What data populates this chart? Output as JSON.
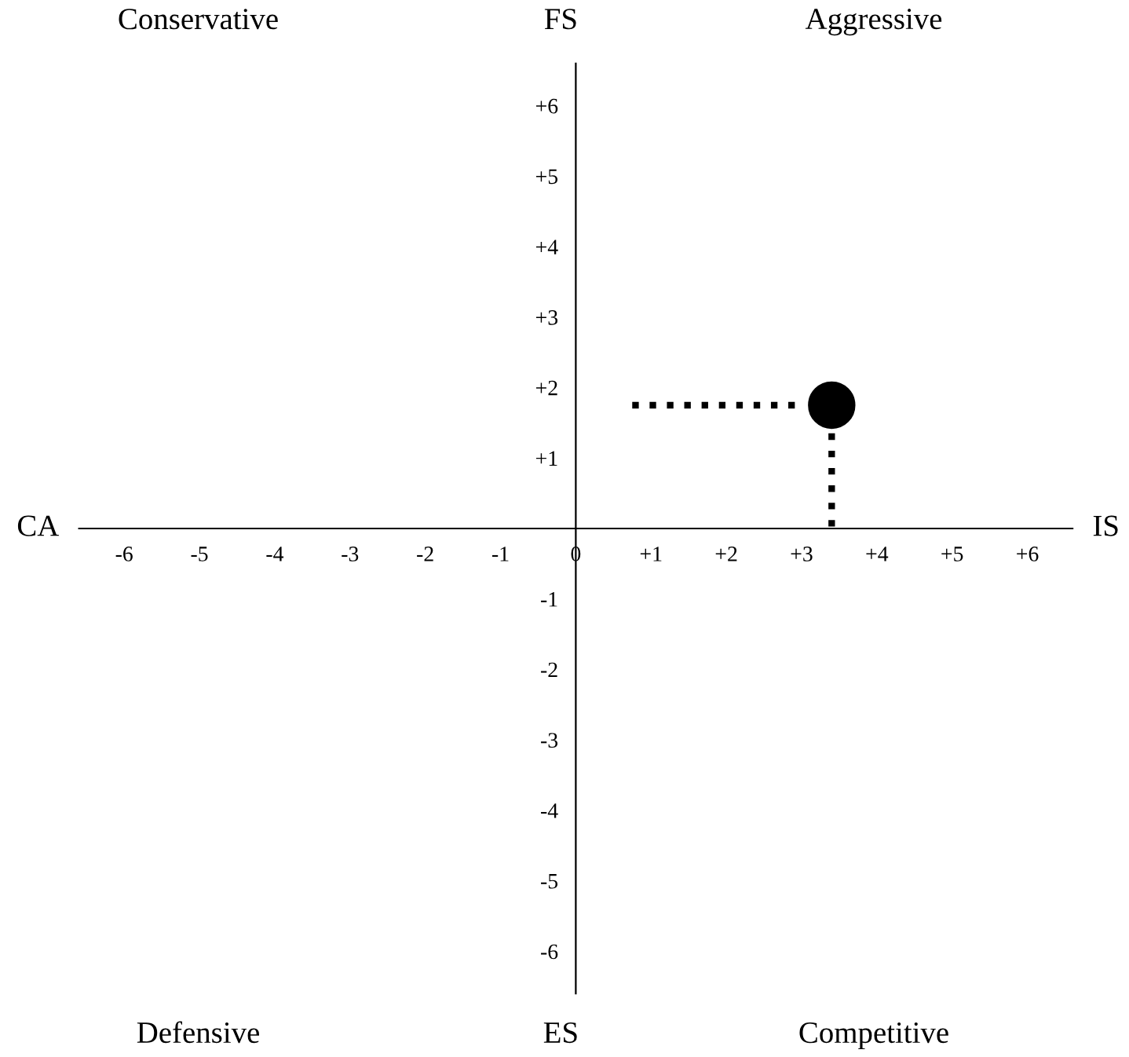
{
  "chart_data": {
    "type": "scatter",
    "xlim": [
      -6.6,
      6.6
    ],
    "ylim": [
      -6.6,
      6.6
    ],
    "xticks": [
      {
        "value": -6,
        "label": "-6"
      },
      {
        "value": -5,
        "label": "-5"
      },
      {
        "value": -4,
        "label": "-4"
      },
      {
        "value": -3,
        "label": "-3"
      },
      {
        "value": -2,
        "label": "-2"
      },
      {
        "value": -1,
        "label": "-1"
      },
      0,
      {
        "value": 1,
        "label": "+1"
      },
      {
        "value": 2,
        "label": "+2"
      },
      {
        "value": 3,
        "label": "+3"
      },
      {
        "value": 4,
        "label": "+4"
      },
      {
        "value": 5,
        "label": "+5"
      },
      {
        "value": 6,
        "label": "+6"
      }
    ],
    "yticks": [
      {
        "value": -6,
        "label": "-6"
      },
      {
        "value": -5,
        "label": "-5"
      },
      {
        "value": -4,
        "label": "-4"
      },
      {
        "value": -3,
        "label": "-3"
      },
      {
        "value": -2,
        "label": "-2"
      },
      {
        "value": -1,
        "label": "-1"
      },
      {
        "value": 1,
        "label": "+1"
      },
      {
        "value": 2,
        "label": "+2"
      },
      {
        "value": 3,
        "label": "+3"
      },
      {
        "value": 4,
        "label": "+4"
      },
      {
        "value": 5,
        "label": "+5"
      },
      {
        "value": 6,
        "label": "+6"
      }
    ],
    "grid": false,
    "series": [
      {
        "type": "line",
        "x": [
          0.75,
          3.05
        ],
        "values": [
          1.75,
          1.75
        ],
        "color": "#000000",
        "line_style": "dotted",
        "marker": "none"
      },
      {
        "type": "line",
        "x": [
          3.4,
          3.4
        ],
        "values": [
          1.35,
          0
        ],
        "color": "#000000",
        "line_style": "dotted",
        "marker": "none"
      },
      {
        "x": [
          3.4
        ],
        "values": [
          1.75
        ],
        "color": "#000000",
        "marker": "circle"
      }
    ],
    "annotations": [
      "Conservative",
      "Aggressive",
      "Defensive",
      "Competitive",
      "CA",
      "IS",
      "FS",
      "ES"
    ]
  }
}
